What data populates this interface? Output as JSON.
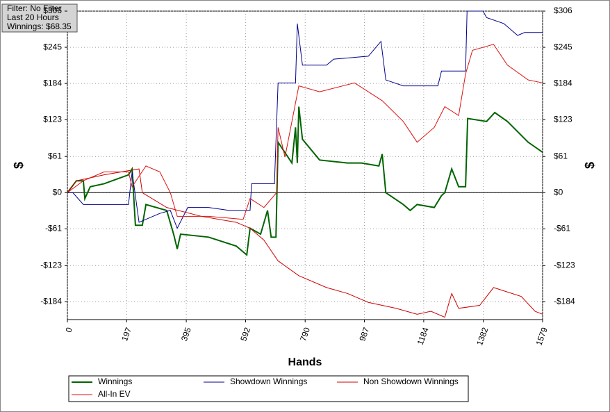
{
  "chart_data": {
    "type": "line",
    "info": [
      "Filter: No Filter",
      "Last  20 Hours",
      "Winnings: $68.35"
    ],
    "xlabel": "Hands",
    "ylabel": "$",
    "xlim": [
      0,
      1579
    ],
    "ylim": [
      -214,
      306
    ],
    "xticks": [
      0,
      197,
      395,
      592,
      790,
      987,
      1184,
      1382,
      1579
    ],
    "yticks": [
      {
        "value": 306,
        "label": "$306"
      },
      {
        "value": 245,
        "label": "$245"
      },
      {
        "value": 184,
        "label": "$184"
      },
      {
        "value": 123,
        "label": "$123"
      },
      {
        "value": 61,
        "label": "$61"
      },
      {
        "value": 0,
        "label": "$0"
      },
      {
        "value": -61,
        "label": "-$61"
      },
      {
        "value": -123,
        "label": "-$123"
      },
      {
        "value": -184,
        "label": "-$184"
      }
    ],
    "grid": true,
    "series": [
      {
        "name": "Winnings",
        "color": "#006400",
        "x": [
          0,
          30,
          53,
          58,
          76,
          122,
          203,
          215,
          226,
          249,
          261,
          330,
          353,
          365,
          376,
          469,
          561,
          596,
          607,
          642,
          665,
          677,
          693,
          700,
          746,
          758,
          764,
          769,
          781,
          838,
          931,
          977,
          1035,
          1046,
          1058,
          1116,
          1139,
          1162,
          1219,
          1243,
          1254,
          1277,
          1300,
          1323,
          1330,
          1393,
          1420,
          1462,
          1531,
          1579
        ],
        "values": [
          0,
          20,
          20,
          -10,
          10,
          15,
          30,
          40,
          -55,
          -55,
          -20,
          -30,
          -70,
          -95,
          -70,
          -75,
          -90,
          -105,
          -60,
          -70,
          -30,
          -75,
          -75,
          85,
          50,
          110,
          50,
          145,
          90,
          55,
          50,
          50,
          45,
          65,
          0,
          -20,
          -30,
          -20,
          -25,
          -5,
          0,
          40,
          10,
          10,
          125,
          120,
          135,
          120,
          85,
          68
        ]
      },
      {
        "name": "Showdown Winnings",
        "color": "#00008b",
        "x": [
          0,
          18,
          53,
          203,
          215,
          238,
          307,
          342,
          365,
          400,
          469,
          538,
          607,
          612,
          688,
          700,
          758,
          764,
          781,
          861,
          885,
          1000,
          1042,
          1058,
          1116,
          1231,
          1243,
          1323,
          1328,
          1381,
          1393,
          1450,
          1496,
          1519,
          1579
        ],
        "values": [
          0,
          0,
          -20,
          -20,
          35,
          -50,
          -35,
          -30,
          -60,
          -25,
          -25,
          -30,
          -30,
          15,
          15,
          185,
          185,
          285,
          215,
          215,
          225,
          230,
          255,
          190,
          180,
          180,
          205,
          205,
          306,
          306,
          295,
          285,
          265,
          270,
          270
        ]
      },
      {
        "name": "Non Showdown Winnings",
        "color": "#cc0000",
        "x": [
          0,
          30,
          122,
          238,
          249,
          330,
          446,
          561,
          607,
          653,
          700,
          769,
          861,
          931,
          1000,
          1092,
          1162,
          1208,
          1254,
          1277,
          1300,
          1370,
          1416,
          1508,
          1554,
          1579
        ],
        "values": [
          0,
          20,
          30,
          40,
          0,
          -25,
          -40,
          -50,
          -60,
          -80,
          -115,
          -140,
          -160,
          -170,
          -185,
          -195,
          -205,
          -200,
          -210,
          -170,
          -195,
          -190,
          -160,
          -175,
          -200,
          -205
        ]
      },
      {
        "name": "All-In EV",
        "color": "#dd1111",
        "x": [
          0,
          53,
          122,
          203,
          215,
          261,
          307,
          342,
          365,
          469,
          584,
          607,
          653,
          695,
          700,
          723,
          769,
          838,
          954,
          1046,
          1116,
          1162,
          1219,
          1254,
          1300,
          1323,
          1346,
          1416,
          1462,
          1531,
          1579
        ],
        "values": [
          0,
          20,
          35,
          35,
          10,
          45,
          35,
          0,
          -40,
          -40,
          -45,
          -10,
          -25,
          0,
          110,
          60,
          180,
          170,
          185,
          155,
          120,
          85,
          110,
          145,
          130,
          200,
          240,
          250,
          215,
          190,
          185
        ]
      }
    ]
  }
}
